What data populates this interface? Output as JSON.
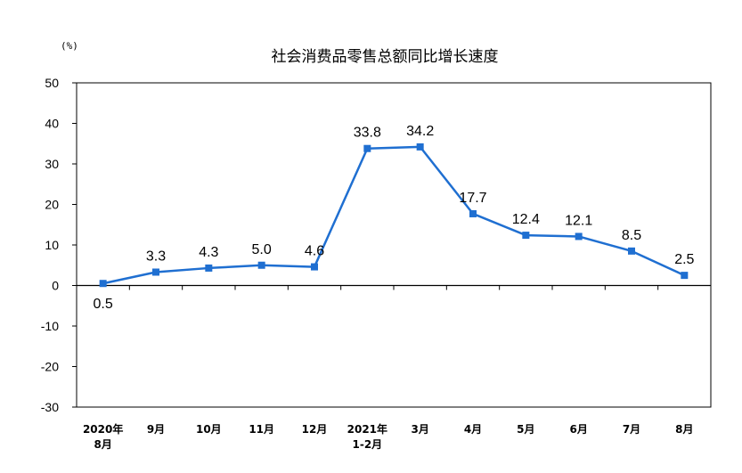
{
  "chart_data": {
    "type": "line",
    "title": "社会消费品零售总额同比增长速度",
    "unit": "(%)",
    "ylim": [
      -30,
      50
    ],
    "yticks": [
      "50",
      "40",
      "30",
      "20",
      "10",
      "0",
      "-10",
      "-20",
      "-30"
    ],
    "categories": [
      [
        "2020年",
        "8月"
      ],
      [
        "9月"
      ],
      [
        "10月"
      ],
      [
        "11月"
      ],
      [
        "12月"
      ],
      [
        "2021年",
        "1-2月"
      ],
      [
        "3月"
      ],
      [
        "4月"
      ],
      [
        "5月"
      ],
      [
        "6月"
      ],
      [
        "7月"
      ],
      [
        "8月"
      ]
    ],
    "values": [
      0.5,
      3.3,
      4.3,
      5.0,
      4.6,
      33.8,
      34.2,
      17.7,
      12.4,
      12.1,
      8.5,
      2.5
    ],
    "labels": [
      "0.5",
      "3.3",
      "4.3",
      "5.0",
      "4.6",
      "33.8",
      "34.2",
      "17.7",
      "12.4",
      "12.1",
      "8.5",
      "2.5"
    ],
    "label_below": [
      true,
      false,
      false,
      false,
      false,
      false,
      false,
      false,
      false,
      false,
      false,
      false
    ],
    "color": "#1f6fd1",
    "grid": false,
    "legend": "none"
  }
}
